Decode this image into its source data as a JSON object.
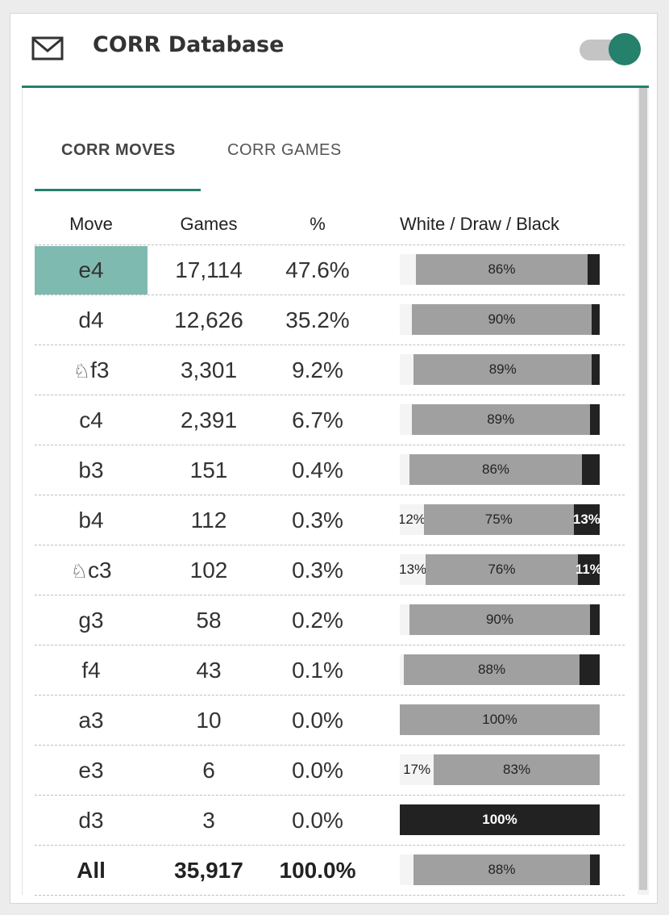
{
  "panel": {
    "title": "CORR Database",
    "icon": "envelope-icon",
    "toggle_on": true,
    "accent_color": "#25806c"
  },
  "tabs": [
    {
      "label": "CORR MOVES",
      "active": true
    },
    {
      "label": "CORR GAMES",
      "active": false
    }
  ],
  "table": {
    "headers": {
      "move": "Move",
      "games": "Games",
      "pct": "%",
      "wdb": "White / Draw / Black"
    },
    "rows": [
      {
        "move": "e4",
        "piece": "",
        "games": "17,114",
        "pct": "47.6%",
        "white": 8,
        "draw": 86,
        "black": 6,
        "labels": [
          "",
          "86%",
          ""
        ],
        "highlighted": true
      },
      {
        "move": "d4",
        "piece": "",
        "games": "12,626",
        "pct": "35.2%",
        "white": 6,
        "draw": 90,
        "black": 4,
        "labels": [
          "",
          "90%",
          ""
        ]
      },
      {
        "move": "f3",
        "piece": "♘",
        "games": "3,301",
        "pct": "9.2%",
        "white": 7,
        "draw": 89,
        "black": 4,
        "labels": [
          "",
          "89%",
          ""
        ]
      },
      {
        "move": "c4",
        "piece": "",
        "games": "2,391",
        "pct": "6.7%",
        "white": 6,
        "draw": 89,
        "black": 5,
        "labels": [
          "",
          "89%",
          ""
        ]
      },
      {
        "move": "b3",
        "piece": "",
        "games": "151",
        "pct": "0.4%",
        "white": 5,
        "draw": 86,
        "black": 9,
        "labels": [
          "",
          "86%",
          ""
        ]
      },
      {
        "move": "b4",
        "piece": "",
        "games": "112",
        "pct": "0.3%",
        "white": 12,
        "draw": 75,
        "black": 13,
        "labels": [
          "12%",
          "75%",
          "13%"
        ]
      },
      {
        "move": "c3",
        "piece": "♘",
        "games": "102",
        "pct": "0.3%",
        "white": 13,
        "draw": 76,
        "black": 11,
        "labels": [
          "13%",
          "76%",
          "11%"
        ]
      },
      {
        "move": "g3",
        "piece": "",
        "games": "58",
        "pct": "0.2%",
        "white": 5,
        "draw": 90,
        "black": 5,
        "labels": [
          "",
          "90%",
          ""
        ]
      },
      {
        "move": "f4",
        "piece": "",
        "games": "43",
        "pct": "0.1%",
        "white": 2,
        "draw": 88,
        "black": 10,
        "labels": [
          "",
          "88%",
          ""
        ]
      },
      {
        "move": "a3",
        "piece": "",
        "games": "10",
        "pct": "0.0%",
        "white": 0,
        "draw": 100,
        "black": 0,
        "labels": [
          "",
          "100%",
          ""
        ]
      },
      {
        "move": "e3",
        "piece": "",
        "games": "6",
        "pct": "0.0%",
        "white": 17,
        "draw": 83,
        "black": 0,
        "labels": [
          "17%",
          "83%",
          ""
        ]
      },
      {
        "move": "d3",
        "piece": "",
        "games": "3",
        "pct": "0.0%",
        "white": 0,
        "draw": 0,
        "black": 100,
        "labels": [
          "",
          "",
          "100%"
        ]
      }
    ],
    "total": {
      "move": "All",
      "games": "35,917",
      "pct": "100.0%",
      "white": 7,
      "draw": 88,
      "black": 5,
      "labels": [
        "",
        "88%",
        ""
      ]
    }
  }
}
